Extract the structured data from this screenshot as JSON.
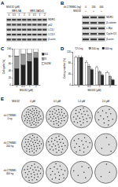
{
  "panel_labels": [
    "A",
    "B",
    "C",
    "D",
    "E"
  ],
  "blots": [
    {
      "header": "MG132 (μM)",
      "groups": [
        "MES-SA",
        "MES-SA/Dx5"
      ],
      "lanes": [
        "0",
        "0.5",
        "1",
        "2",
        "0",
        "0.5",
        "1",
        "2"
      ],
      "rows": [
        "MDR1",
        "p62",
        "LC3-I",
        "LC3-II",
        "β-actin"
      ]
    },
    {
      "conditions": [
        {
          "label": "sh-CTNNB1 (ng)",
          "values": [
            "0",
            "200",
            "400"
          ]
        },
        {
          "label": "MG132",
          "values": [
            "+",
            "+",
            "+"
          ]
        }
      ],
      "rows": [
        "MDR1",
        "β-catenin",
        "c-Myc",
        "Cyclin D1",
        "β-actin"
      ]
    }
  ],
  "chart_data": [
    {
      "type": "bar",
      "stacked": true,
      "categories": [
        "0",
        "0.5",
        "1",
        "2"
      ],
      "x_label": "MG132 (μM)",
      "y_label": "Cell cycle (%)",
      "series": [
        {
          "name": "G1",
          "color": "#222222",
          "values": [
            45,
            55,
            65,
            75
          ]
        },
        {
          "name": "S",
          "color": "#999999",
          "values": [
            35,
            30,
            22,
            15
          ]
        },
        {
          "name": "G2/M",
          "color": "#ffffff",
          "values": [
            20,
            15,
            13,
            10
          ]
        }
      ],
      "ylim": [
        0,
        100
      ],
      "yticks": [
        0,
        20,
        40,
        60,
        80,
        100
      ],
      "grid": false,
      "legend": "right"
    },
    {
      "type": "bar",
      "categories": [
        "0",
        "0.5",
        "1",
        "2"
      ],
      "x_label": "MG132 (μM)",
      "y_label": "Colony number (%)",
      "series": [
        {
          "name": "0 ng",
          "color": "#ffffff",
          "values": [
            100,
            82,
            63,
            45
          ],
          "errors": [
            5,
            6,
            5,
            4
          ]
        },
        {
          "name": "200 ng",
          "color": "#999999",
          "values": [
            100,
            68,
            48,
            30
          ],
          "errors": [
            6,
            5,
            4,
            4
          ]
        },
        {
          "name": "400 ng",
          "color": "#222222",
          "values": [
            100,
            55,
            35,
            18
          ],
          "errors": [
            5,
            5,
            4,
            3
          ]
        }
      ],
      "ylim": [
        0,
        120
      ],
      "yticks": [
        0,
        40,
        80,
        120
      ],
      "grid": false,
      "legend": "top"
    }
  ],
  "plates": {
    "column_header": "MG132",
    "columns": [
      "0 μM",
      "0.5 μM",
      "1.0 μM",
      "2.0 μM"
    ],
    "rows": [
      {
        "name": "sh-CTNNB1",
        "dose": "0 ng"
      },
      {
        "name": "sh-CTNNB1",
        "dose": "200 ng"
      },
      {
        "name": "sh-CTNNB1",
        "dose": "400 ng"
      }
    ]
  }
}
